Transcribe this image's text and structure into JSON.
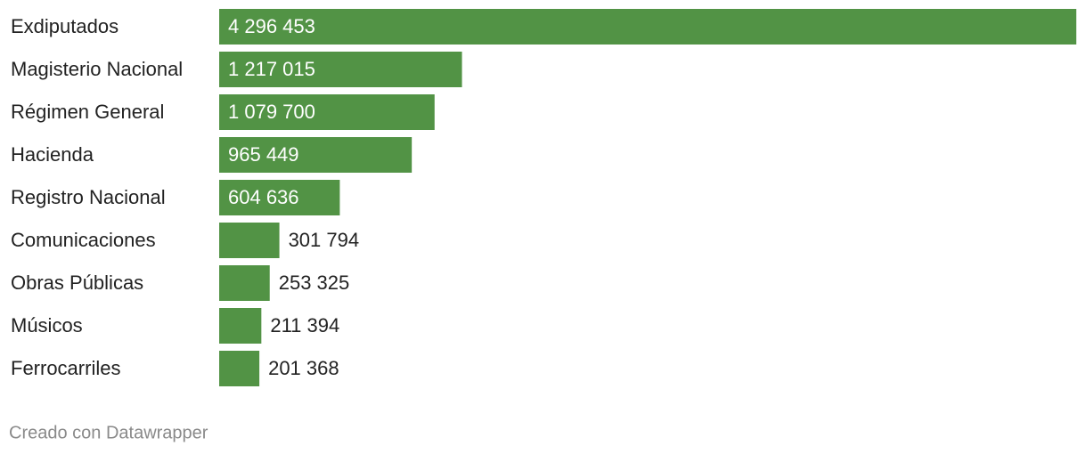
{
  "chart_data": {
    "type": "bar",
    "orientation": "horizontal",
    "categories": [
      "Exdiputados",
      "Magisterio Nacional",
      "Régimen General",
      "Hacienda",
      "Registro Nacional",
      "Comunicaciones",
      "Obras Públicas",
      "Músicos",
      "Ferrocarriles"
    ],
    "values": [
      4296453,
      1217015,
      1079700,
      965449,
      604636,
      301794,
      253325,
      211394,
      201368
    ],
    "value_labels": [
      "4 296 453",
      "1 217 015",
      "1 079 700",
      "965 449",
      "604 636",
      "301 794",
      "253 325",
      "211 394",
      "201 368"
    ],
    "color": "#529345",
    "credit": "Creado con Datawrapper"
  }
}
